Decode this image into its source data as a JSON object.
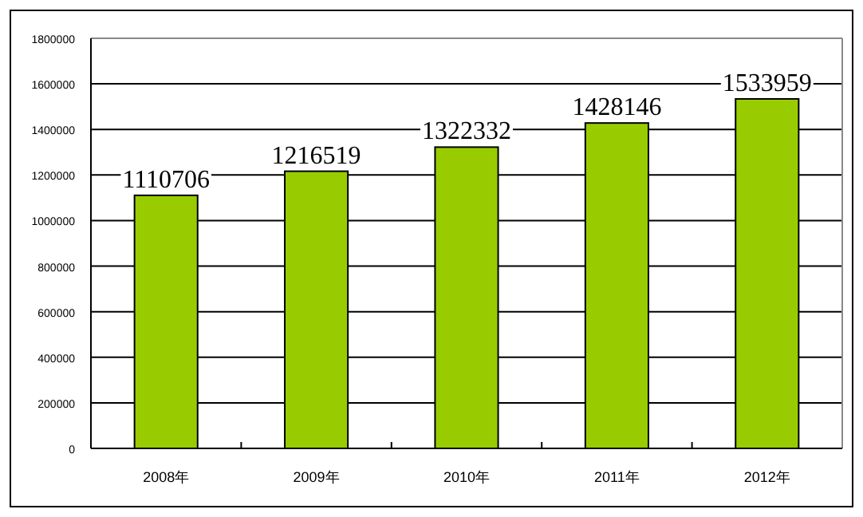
{
  "chart_data": {
    "type": "bar",
    "categories": [
      "2008年",
      "2009年",
      "2010年",
      "2011年",
      "2012年"
    ],
    "values": [
      1110706,
      1216519,
      1322332,
      1428146,
      1533959
    ],
    "color": "#99cc00",
    "ylim": [
      0,
      1800000
    ],
    "yticks": [
      0,
      200000,
      400000,
      600000,
      800000,
      1000000,
      1200000,
      1400000,
      1600000,
      1800000
    ],
    "grid": "y",
    "data_labels": true
  }
}
